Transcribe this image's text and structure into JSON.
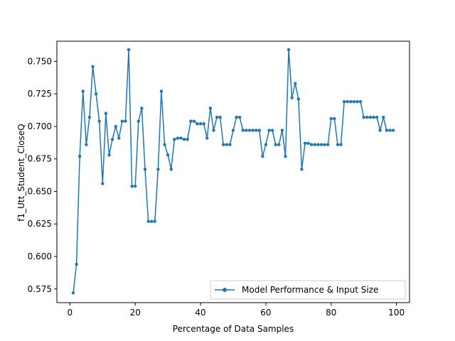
{
  "chart_data": {
    "type": "line",
    "title": "",
    "xlabel": "Percentage of Data Samples",
    "ylabel": "f1_Utt_Student_CloseQ",
    "xlim": [
      -4,
      104
    ],
    "ylim": [
      0.5645,
      0.7655
    ],
    "xticks": [
      0,
      20,
      40,
      60,
      80,
      100
    ],
    "yticks": [
      0.575,
      0.6,
      0.625,
      0.65,
      0.675,
      0.7,
      0.725,
      0.75
    ],
    "ytick_labels": [
      "0.575",
      "0.600",
      "0.625",
      "0.650",
      "0.675",
      "0.700",
      "0.725",
      "0.750"
    ],
    "legend_position": "lower right",
    "grid": false,
    "color": "#1f77b4",
    "series": [
      {
        "name": "Model Performance & Input Size",
        "x": [
          1,
          2,
          3,
          4,
          5,
          6,
          7,
          8,
          9,
          10,
          11,
          12,
          13,
          14,
          15,
          16,
          17,
          18,
          19,
          20,
          21,
          22,
          23,
          24,
          25,
          26,
          27,
          28,
          29,
          30,
          31,
          32,
          33,
          34,
          35,
          36,
          37,
          38,
          39,
          40,
          41,
          42,
          43,
          44,
          45,
          46,
          47,
          48,
          49,
          50,
          51,
          52,
          53,
          54,
          55,
          56,
          57,
          58,
          59,
          60,
          61,
          62,
          63,
          64,
          65,
          66,
          67,
          68,
          69,
          70,
          71,
          72,
          73,
          74,
          75,
          76,
          77,
          78,
          79,
          80,
          81,
          82,
          83,
          84,
          85,
          86,
          87,
          88,
          89,
          90,
          91,
          92,
          93,
          94,
          95,
          96,
          97,
          98,
          99
        ],
        "y": [
          0.572,
          0.594,
          0.677,
          0.727,
          0.686,
          0.707,
          0.746,
          0.725,
          0.704,
          0.656,
          0.71,
          0.678,
          0.69,
          0.7,
          0.691,
          0.704,
          0.704,
          0.759,
          0.654,
          0.654,
          0.704,
          0.714,
          0.667,
          0.627,
          0.627,
          0.627,
          0.667,
          0.727,
          0.686,
          0.678,
          0.667,
          0.69,
          0.691,
          0.691,
          0.69,
          0.69,
          0.704,
          0.704,
          0.702,
          0.702,
          0.702,
          0.691,
          0.714,
          0.697,
          0.707,
          0.707,
          0.686,
          0.686,
          0.686,
          0.697,
          0.707,
          0.707,
          0.697,
          0.697,
          0.697,
          0.697,
          0.697,
          0.697,
          0.677,
          0.686,
          0.697,
          0.697,
          0.686,
          0.686,
          0.697,
          0.677,
          0.759,
          0.722,
          0.733,
          0.721,
          0.667,
          0.687,
          0.687,
          0.686,
          0.686,
          0.686,
          0.686,
          0.686,
          0.686,
          0.706,
          0.706,
          0.686,
          0.686,
          0.719,
          0.719,
          0.719,
          0.719,
          0.719,
          0.719,
          0.707,
          0.707,
          0.707,
          0.707,
          0.707,
          0.697,
          0.707,
          0.697,
          0.697,
          0.697
        ]
      }
    ]
  }
}
